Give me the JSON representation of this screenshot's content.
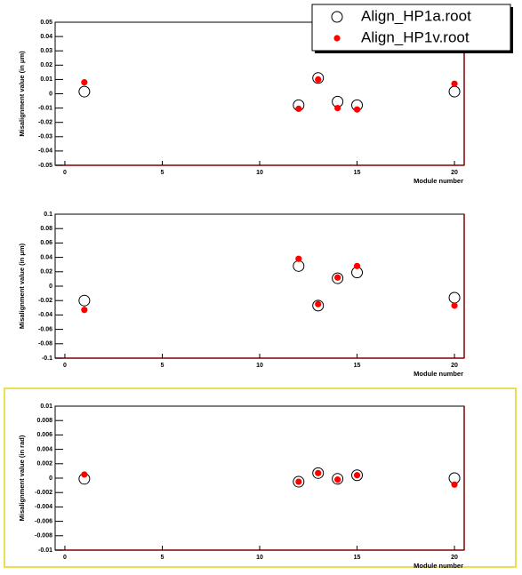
{
  "chart_data": [
    {
      "type": "scatter",
      "y_label": "Misalignment value (in μm)",
      "x_label": "Module number",
      "xlim": [
        -0.5,
        20.5
      ],
      "xticks": [
        0,
        5,
        10,
        15,
        20
      ],
      "ylim": [
        -0.05,
        0.05
      ],
      "yticks": [
        0.05,
        0.04,
        0.03,
        0.02,
        0.01,
        0,
        -0.01,
        -0.02,
        -0.03,
        -0.04,
        -0.05
      ],
      "legend": "upper right",
      "x": [
        1,
        12,
        13,
        14,
        15,
        20
      ],
      "series": [
        {
          "name": "Align_HP1a.root",
          "color": "#000000",
          "marker": "open-circle",
          "values": [
            0.0015,
            -0.008,
            0.011,
            -0.0055,
            -0.008,
            0.0015
          ]
        },
        {
          "name": "Align_HP1v.root",
          "color": "#ff0000",
          "marker": "filled-circle",
          "values": [
            0.008,
            -0.0105,
            0.01,
            -0.01,
            -0.011,
            0.007
          ]
        }
      ]
    },
    {
      "type": "scatter",
      "y_label": "Misalignment value (in μm)",
      "x_label": "Module number",
      "xlim": [
        -0.5,
        20.5
      ],
      "xticks": [
        0,
        5,
        10,
        15,
        20
      ],
      "ylim": [
        -0.1,
        0.1
      ],
      "yticks": [
        0.1,
        0.08,
        0.06,
        0.04,
        0.02,
        0,
        -0.02,
        -0.04,
        -0.06,
        -0.08,
        -0.1
      ],
      "x": [
        1,
        12,
        13,
        14,
        15,
        20
      ],
      "series": [
        {
          "color": "#000000",
          "marker": "open-circle",
          "values": [
            -0.02,
            0.028,
            -0.027,
            0.011,
            0.019,
            -0.016
          ]
        },
        {
          "color": "#ff0000",
          "marker": "filled-circle",
          "values": [
            -0.033,
            0.038,
            -0.025,
            0.012,
            0.028,
            -0.027
          ]
        }
      ]
    },
    {
      "type": "scatter",
      "y_label": "Misalignment value (in rad)",
      "x_label": "Module number",
      "xlim": [
        -0.5,
        20.5
      ],
      "xticks": [
        0,
        5,
        10,
        15,
        20
      ],
      "ylim": [
        -0.01,
        0.01
      ],
      "yticks": [
        0.01,
        0.008,
        0.006,
        0.004,
        0.002,
        0,
        -0.002,
        -0.004,
        -0.006,
        -0.008,
        -0.01
      ],
      "x": [
        1,
        12,
        13,
        14,
        15,
        20
      ],
      "series": [
        {
          "color": "#000000",
          "marker": "open-circle",
          "values": [
            -0.0001,
            -0.0005,
            0.0007,
            -0.0001,
            0.0004,
            0
          ]
        },
        {
          "color": "#ff0000",
          "marker": "filled-circle",
          "values": [
            0.0005,
            -0.0005,
            0.0007,
            -0.0002,
            0.0004,
            -0.0009
          ]
        }
      ]
    }
  ]
}
